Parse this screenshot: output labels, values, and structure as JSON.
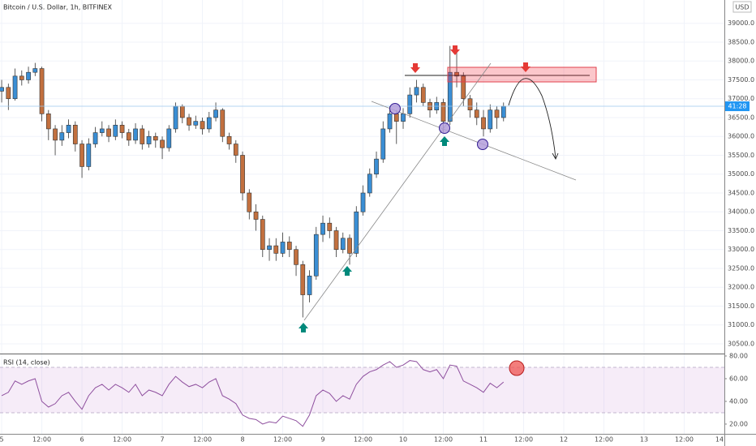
{
  "chart_data": [
    {
      "type": "candlestick",
      "title": "Bitcoin / U.S. Dollar, 1h, BITFINEX",
      "currency": "USD",
      "countdown": "41:28",
      "up_color": "#3a8ed4",
      "down_color": "#c2703f",
      "grid": true,
      "x": [
        0,
        2,
        4,
        6,
        8,
        10,
        12,
        14,
        16,
        18,
        20,
        22,
        24,
        26,
        28,
        30,
        32,
        34,
        36,
        38,
        40,
        42,
        44,
        46,
        48,
        50,
        52,
        54,
        56,
        58,
        60,
        62,
        64,
        66,
        68,
        70,
        72,
        74,
        76,
        78,
        80,
        82,
        84,
        86,
        88,
        90,
        92,
        94,
        96,
        98,
        100,
        102,
        104,
        106,
        108,
        110,
        112,
        114,
        116,
        118,
        120,
        122,
        124,
        126,
        128,
        130,
        132,
        134,
        136,
        138,
        140,
        142,
        144,
        146,
        148,
        150
      ],
      "open": [
        37200,
        37300,
        37000,
        37600,
        37500,
        37700,
        37800,
        36600,
        36200,
        35900,
        36100,
        36300,
        35800,
        35200,
        35800,
        36100,
        36200,
        36000,
        36300,
        36100,
        35900,
        36200,
        35800,
        36000,
        35900,
        35700,
        36200,
        36800,
        36500,
        36300,
        36400,
        36200,
        36500,
        36700,
        36000,
        35800,
        35500,
        34500,
        34000,
        33800,
        33000,
        33100,
        32900,
        33200,
        33000,
        32600,
        31800,
        32300,
        33400,
        33700,
        33500,
        33000,
        33300,
        32900,
        34000,
        34500,
        35000,
        35400,
        36200,
        36600,
        36400,
        36600,
        37100,
        37300,
        36900,
        36700,
        36900,
        36400,
        37700,
        37600,
        37000,
        36700,
        36500,
        36200,
        36700,
        36500
      ],
      "high": [
        37500,
        37400,
        37800,
        37750,
        37850,
        37950,
        37850,
        36700,
        36300,
        36300,
        36450,
        36400,
        35900,
        35950,
        36250,
        36400,
        36300,
        36450,
        36400,
        36200,
        36350,
        36300,
        36150,
        36100,
        36000,
        36300,
        36900,
        36850,
        36600,
        36550,
        36500,
        36650,
        36900,
        36750,
        36100,
        35900,
        35600,
        34600,
        34200,
        33900,
        33300,
        33300,
        33450,
        33350,
        33100,
        32700,
        32450,
        33600,
        33900,
        33850,
        33600,
        33450,
        33400,
        34150,
        34700,
        35150,
        35600,
        36400,
        36800,
        36700,
        36750,
        37300,
        37500,
        37400,
        37000,
        37050,
        37000,
        38400,
        38300,
        37700,
        37100,
        36900,
        36700,
        36850,
        36800,
        36900
      ],
      "low": [
        36900,
        36700,
        36950,
        37350,
        37400,
        37600,
        36400,
        35900,
        35500,
        35750,
        35950,
        35600,
        34900,
        35100,
        35700,
        36000,
        35850,
        35900,
        35950,
        35750,
        35800,
        35650,
        35700,
        35700,
        35400,
        35600,
        36100,
        36350,
        36150,
        36200,
        36050,
        36100,
        36400,
        35850,
        35650,
        35300,
        34300,
        33800,
        33500,
        32800,
        32700,
        32700,
        32800,
        32800,
        32300,
        31200,
        31600,
        32200,
        33200,
        33300,
        32800,
        32900,
        32600,
        32800,
        33900,
        34400,
        34900,
        35300,
        36100,
        35800,
        36200,
        36500,
        36900,
        36800,
        36500,
        36600,
        36100,
        36300,
        37300,
        36800,
        36500,
        36300,
        36000,
        36100,
        36200,
        36400
      ],
      "close": [
        37300,
        37000,
        37600,
        37500,
        37700,
        37800,
        36600,
        36200,
        35900,
        36100,
        36300,
        35800,
        35200,
        35800,
        36100,
        36200,
        36000,
        36300,
        36100,
        35900,
        36200,
        35800,
        36000,
        35900,
        35700,
        36200,
        36800,
        36500,
        36300,
        36400,
        36200,
        36500,
        36700,
        36000,
        35800,
        35500,
        34500,
        34000,
        33800,
        33000,
        33100,
        32900,
        33200,
        33000,
        32600,
        31800,
        32300,
        33400,
        33700,
        33500,
        33000,
        33300,
        32900,
        34000,
        34500,
        35000,
        35400,
        36200,
        36600,
        36400,
        36600,
        37100,
        37300,
        36900,
        36700,
        36900,
        36400,
        37700,
        37600,
        37000,
        36700,
        36500,
        36200,
        36700,
        36500,
        36800
      ],
      "xlim": [
        -0.5,
        216
      ],
      "ylim": [
        30263,
        39618
      ],
      "xticks": [
        {
          "value": 0,
          "label": "5"
        },
        {
          "value": 12,
          "label": "12:00"
        },
        {
          "value": 24,
          "label": "6"
        },
        {
          "value": 36,
          "label": "12:00"
        },
        {
          "value": 48,
          "label": "7"
        },
        {
          "value": 60,
          "label": "12:00"
        },
        {
          "value": 72,
          "label": "8"
        },
        {
          "value": 84,
          "label": "12:00"
        },
        {
          "value": 96,
          "label": "9"
        },
        {
          "value": 108,
          "label": "12:00"
        },
        {
          "value": 120,
          "label": "10"
        },
        {
          "value": 132,
          "label": "12:00"
        },
        {
          "value": 144,
          "label": "11"
        },
        {
          "value": 156,
          "label": "12:00"
        },
        {
          "value": 168,
          "label": "12"
        },
        {
          "value": 180,
          "label": "12:00"
        },
        {
          "value": 192,
          "label": "13"
        },
        {
          "value": 204,
          "label": "12:00"
        },
        {
          "value": 216,
          "label": "14"
        }
      ],
      "yticks": [
        {
          "value": 30500,
          "label": "30500.0"
        },
        {
          "value": 31000,
          "label": "31000.0"
        },
        {
          "value": 31500,
          "label": "31500.0"
        },
        {
          "value": 32000,
          "label": "32000.0"
        },
        {
          "value": 32500,
          "label": "32500.0"
        },
        {
          "value": 33000,
          "label": "33000.0"
        },
        {
          "value": 33500,
          "label": "33500.0"
        },
        {
          "value": 34000,
          "label": "34000.0"
        },
        {
          "value": 34500,
          "label": "34500.0"
        },
        {
          "value": 35000,
          "label": "35000.0"
        },
        {
          "value": 35500,
          "label": "35500.0"
        },
        {
          "value": 36000,
          "label": "36000.0"
        },
        {
          "value": 36500,
          "label": "36500.0"
        },
        {
          "value": 37000,
          "label": "37000.0"
        },
        {
          "value": 37500,
          "label": "37500.0"
        },
        {
          "value": 38000,
          "label": "38000.0"
        },
        {
          "value": 38500,
          "label": "38500.0"
        },
        {
          "value": 39000,
          "label": "39000.0"
        }
      ]
    },
    {
      "type": "line",
      "title": "RSI (14, close)",
      "color": "#8e4f9e",
      "x": [
        0,
        2,
        4,
        6,
        8,
        10,
        12,
        14,
        16,
        18,
        20,
        22,
        24,
        26,
        28,
        30,
        32,
        34,
        36,
        38,
        40,
        42,
        44,
        46,
        48,
        50,
        52,
        54,
        56,
        58,
        60,
        62,
        64,
        66,
        68,
        70,
        72,
        74,
        76,
        78,
        80,
        82,
        84,
        86,
        88,
        90,
        92,
        94,
        96,
        98,
        100,
        102,
        104,
        106,
        108,
        110,
        112,
        114,
        116,
        118,
        120,
        122,
        124,
        126,
        128,
        130,
        132,
        134,
        136,
        138,
        140,
        142,
        144,
        146,
        148,
        150
      ],
      "values": [
        45,
        48,
        58,
        55,
        58,
        60,
        40,
        35,
        38,
        45,
        48,
        40,
        33,
        45,
        52,
        55,
        50,
        55,
        52,
        48,
        55,
        45,
        50,
        48,
        45,
        55,
        62,
        57,
        53,
        55,
        52,
        57,
        60,
        45,
        42,
        38,
        28,
        25,
        24,
        20,
        22,
        21,
        27,
        25,
        23,
        18,
        28,
        45,
        50,
        47,
        40,
        45,
        42,
        55,
        62,
        66,
        68,
        72,
        75,
        70,
        72,
        76,
        75,
        68,
        66,
        68,
        60,
        72,
        71,
        58,
        55,
        52,
        48,
        56,
        52,
        57
      ],
      "band": [
        30,
        70
      ],
      "xlim": [
        -0.5,
        216
      ],
      "ylim": [
        11.4,
        80.7
      ],
      "yticks": [
        {
          "value": 20,
          "label": "20.00"
        },
        {
          "value": 40,
          "label": "40.00"
        },
        {
          "value": 60,
          "label": "60.00"
        },
        {
          "value": 80,
          "label": "80.00"
        }
      ]
    }
  ]
}
